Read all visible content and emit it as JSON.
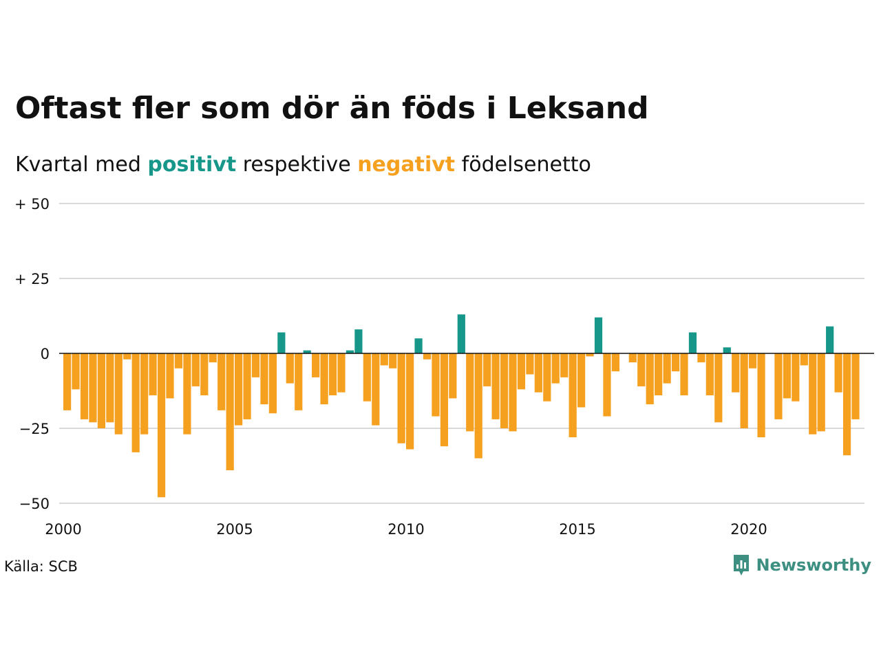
{
  "title": "Oftast fler som dör än föds i Leksand",
  "subtitle": {
    "prefix": "Kvartal med ",
    "positive_word": "positivt",
    "middle": " respektive ",
    "negative_word": "negativt",
    "suffix": " födelsenetto"
  },
  "source": "Källa: SCB",
  "brand": {
    "name": "Newsworthy",
    "icon": "newsworthy-logo-icon"
  },
  "colors": {
    "positive": "#17978a",
    "negative": "#f5a01f",
    "grid": "#d9d9d9",
    "zero": "#111111",
    "brand": "#3d8f82"
  },
  "chart_data": {
    "type": "bar",
    "x_unit": "quarter",
    "x_start": "2000 Q1",
    "xlim": [
      2000,
      2023.25
    ],
    "ylim": [
      -50,
      50
    ],
    "y_ticks": [
      {
        "value": 50,
        "label": "+ 50"
      },
      {
        "value": 25,
        "label": "+ 25"
      },
      {
        "value": 0,
        "label": "0"
      },
      {
        "value": -25,
        "label": "−25"
      },
      {
        "value": -50,
        "label": "−50"
      }
    ],
    "x_ticks": [
      {
        "value": 2000,
        "label": "2000"
      },
      {
        "value": 2005,
        "label": "2005"
      },
      {
        "value": 2010,
        "label": "2010"
      },
      {
        "value": 2015,
        "label": "2015"
      },
      {
        "value": 2020,
        "label": "2020"
      }
    ],
    "grid": true,
    "values": [
      -19,
      -12,
      -22,
      -23,
      -25,
      -23,
      -27,
      -2,
      -33,
      -27,
      -14,
      -48,
      -15,
      -5,
      -27,
      -11,
      -14,
      -3,
      -19,
      -39,
      -24,
      -22,
      -8,
      -17,
      -20,
      7,
      -10,
      -19,
      1,
      -8,
      -17,
      -14,
      -13,
      1,
      8,
      -16,
      -24,
      -4,
      -5,
      -30,
      -32,
      5,
      -2,
      -21,
      -31,
      -15,
      13,
      -26,
      -35,
      -11,
      -22,
      -25,
      -26,
      -12,
      -7,
      -13,
      -16,
      -10,
      -8,
      -28,
      -18,
      -1,
      12,
      -21,
      -6,
      0,
      -3,
      -11,
      -17,
      -14,
      -10,
      -6,
      -14,
      7,
      -3,
      -14,
      -23,
      2,
      -13,
      -25,
      -5,
      -28,
      0,
      -22,
      -15,
      -16,
      -4,
      -27,
      -26,
      9,
      -13,
      -34,
      -22
    ]
  }
}
